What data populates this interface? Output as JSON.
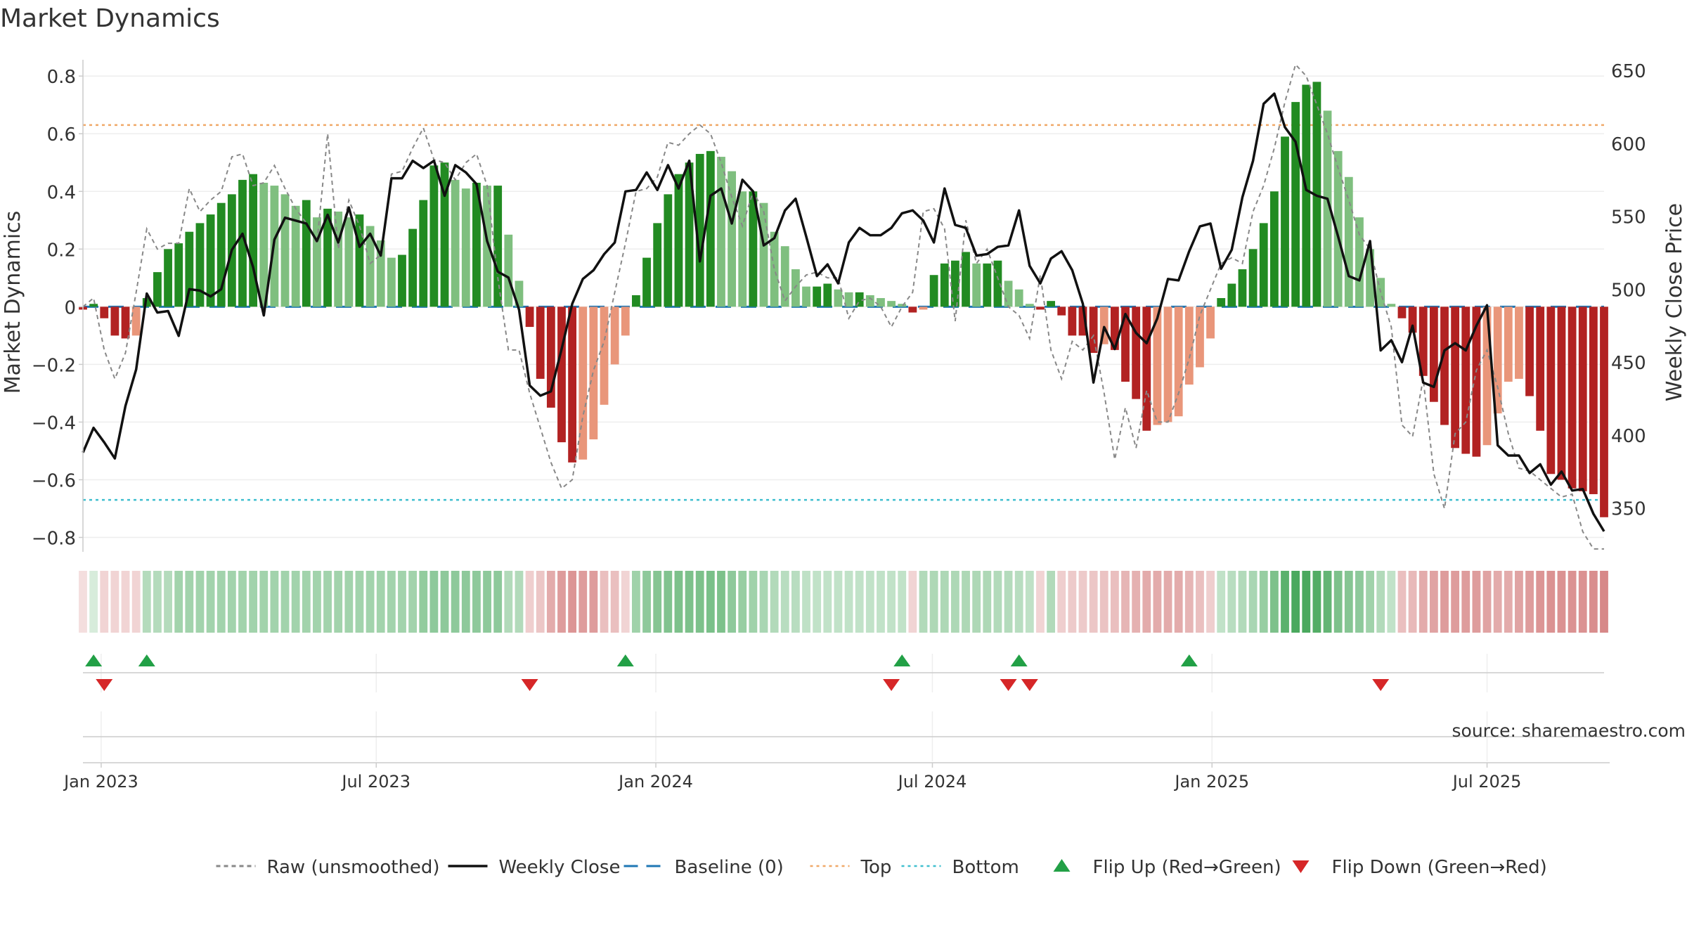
{
  "title": "Market Dynamics",
  "source": "source: sharemaestro.com",
  "chart_data": {
    "type": "bar",
    "title": "Market Dynamics",
    "ylabel": "Market Dynamics",
    "y2label": "Weekly Close Price",
    "ylim": [
      -0.85,
      0.82
    ],
    "y2lim": [
      320,
      650
    ],
    "yticks": [
      "0.8",
      "0.6",
      "0.4",
      "0.2",
      "0",
      "−0.2",
      "−0.4",
      "−0.6",
      "−0.8"
    ],
    "yticks_values": [
      0.8,
      0.6,
      0.4,
      0.2,
      0,
      -0.2,
      -0.4,
      -0.6,
      -0.8
    ],
    "y2ticks": [
      "650",
      "600",
      "550",
      "500",
      "450",
      "400",
      "350"
    ],
    "y2ticks_values": [
      650,
      600,
      550,
      500,
      450,
      400,
      350
    ],
    "xticks": [
      "Jan 2023",
      "Jul 2023",
      "Jan 2024",
      "Jul 2024",
      "Jan 2025",
      "Jul 2025"
    ],
    "xticks_dates": [
      "2023-01-01",
      "2023-07-01",
      "2024-01-01",
      "2024-07-01",
      "2025-01-01",
      "2025-07-01"
    ],
    "x_start": "2022-12-20",
    "week_count": 144,
    "top_line": 0.63,
    "bottom_line": -0.67,
    "baseline": 0,
    "grid": true,
    "legend_position": "bottom",
    "legend": [
      {
        "label": "Raw (unsmoothed)",
        "kind": "dashed-line",
        "color": "#888888"
      },
      {
        "label": "Weekly Close",
        "kind": "line",
        "color": "#111111"
      },
      {
        "label": "Baseline (0)",
        "kind": "dashed-line",
        "color": "#1f77b4"
      },
      {
        "label": "Top",
        "kind": "dotted-line",
        "color": "#f0a868"
      },
      {
        "label": "Bottom",
        "kind": "dotted-line",
        "color": "#3fbfcf"
      },
      {
        "label": "Flip Up (Red→Green)",
        "kind": "up-triangle",
        "color": "#22a046"
      },
      {
        "label": "Flip Down (Green→Red)",
        "kind": "down-triangle",
        "color": "#d62728"
      }
    ],
    "colors": {
      "strong_up": "#228b22",
      "weak_up": "#7fbf7f",
      "strong_down": "#b22222",
      "weak_down": "#e9967a",
      "raw": "#888888",
      "close": "#111111",
      "baseline": "#1f77b4",
      "top": "#f0a868",
      "bottom": "#3fbfcf",
      "flip_up": "#22a046",
      "flip_down": "#d62728"
    },
    "dynamics": [
      -0.01,
      0.01,
      -0.04,
      -0.1,
      -0.11,
      -0.1,
      0.03,
      0.12,
      0.2,
      0.22,
      0.26,
      0.29,
      0.32,
      0.36,
      0.39,
      0.44,
      0.46,
      0.43,
      0.42,
      0.39,
      0.35,
      0.37,
      0.31,
      0.34,
      0.33,
      0.31,
      0.32,
      0.28,
      0.23,
      0.17,
      0.18,
      0.27,
      0.37,
      0.49,
      0.5,
      0.44,
      0.41,
      0.43,
      0.42,
      0.42,
      0.25,
      0.09,
      -0.07,
      -0.25,
      -0.35,
      -0.47,
      -0.54,
      -0.53,
      -0.46,
      -0.34,
      -0.2,
      -0.1,
      0.04,
      0.17,
      0.29,
      0.39,
      0.46,
      0.5,
      0.53,
      0.54,
      0.52,
      0.47,
      0.4,
      0.4,
      0.36,
      0.26,
      0.21,
      0.13,
      0.07,
      0.07,
      0.08,
      0.06,
      0.05,
      0.05,
      0.04,
      0.03,
      0.02,
      0.01,
      -0.02,
      -0.01,
      0.11,
      0.15,
      0.16,
      0.19,
      0.15,
      0.15,
      0.16,
      0.09,
      0.06,
      0.01,
      -0.01,
      0.02,
      -0.03,
      -0.1,
      -0.1,
      -0.16,
      -0.13,
      -0.15,
      -0.26,
      -0.32,
      -0.43,
      -0.41,
      -0.4,
      -0.38,
      -0.27,
      -0.21,
      -0.11,
      0.03,
      0.08,
      0.13,
      0.2,
      0.29,
      0.4,
      0.59,
      0.71,
      0.77,
      0.78,
      0.68,
      0.54,
      0.45,
      0.31,
      0.2,
      0.1,
      0.01,
      -0.04,
      -0.09,
      -0.24,
      -0.33,
      -0.41,
      -0.49,
      -0.51,
      -0.52,
      -0.48,
      -0.37,
      -0.26,
      -0.25,
      -0.31,
      -0.43,
      -0.58,
      -0.6,
      -0.63,
      -0.64,
      -0.65,
      -0.73
    ],
    "raw": [
      0.0,
      0.03,
      -0.15,
      -0.25,
      -0.16,
      0.05,
      0.27,
      0.2,
      0.22,
      0.22,
      0.41,
      0.33,
      0.37,
      0.4,
      0.52,
      0.53,
      0.42,
      0.43,
      0.49,
      0.41,
      0.34,
      0.29,
      0.22,
      0.6,
      0.2,
      0.37,
      0.28,
      0.15,
      0.18,
      0.46,
      0.47,
      0.55,
      0.62,
      0.51,
      0.5,
      0.44,
      0.5,
      0.53,
      0.42,
      0.1,
      -0.15,
      -0.15,
      -0.3,
      -0.42,
      -0.54,
      -0.63,
      -0.6,
      -0.38,
      -0.22,
      -0.12,
      0.05,
      0.22,
      0.4,
      0.41,
      0.45,
      0.57,
      0.56,
      0.6,
      0.63,
      0.6,
      0.5,
      0.38,
      0.28,
      0.4,
      0.33,
      0.13,
      0.02,
      0.07,
      0.11,
      0.12,
      0.1,
      0.1,
      -0.04,
      0.02,
      0.03,
      0.0,
      -0.07,
      0.0,
      0.05,
      0.33,
      0.34,
      0.27,
      -0.05,
      0.3,
      0.15,
      0.2,
      0.1,
      0.0,
      -0.03,
      -0.11,
      0.11,
      -0.15,
      -0.25,
      -0.12,
      -0.15,
      -0.1,
      -0.3,
      -0.53,
      -0.35,
      -0.49,
      -0.29,
      -0.4,
      -0.4,
      -0.3,
      -0.18,
      -0.03,
      0.06,
      0.15,
      0.17,
      0.15,
      0.33,
      0.42,
      0.55,
      0.71,
      0.84,
      0.8,
      0.7,
      0.6,
      0.48,
      0.37,
      0.25,
      0.2,
      0.05,
      -0.07,
      -0.41,
      -0.45,
      -0.25,
      -0.58,
      -0.7,
      -0.44,
      -0.4,
      -0.22,
      -0.15,
      -0.28,
      -0.44,
      -0.56,
      -0.57,
      -0.6,
      -0.63,
      -0.66,
      -0.65,
      -0.78,
      -0.84,
      -0.84
    ],
    "close": [
      388,
      405,
      395,
      384,
      420,
      445,
      497,
      484,
      485,
      468,
      500,
      499,
      495,
      500,
      527,
      538,
      515,
      482,
      534,
      549,
      547,
      545,
      533,
      551,
      532,
      556,
      529,
      538,
      523,
      576,
      576,
      588,
      583,
      588,
      564,
      585,
      580,
      572,
      533,
      512,
      508,
      486,
      434,
      427,
      430,
      459,
      490,
      507,
      513,
      524,
      532,
      567,
      568,
      580,
      568,
      585,
      569,
      588,
      519,
      564,
      569,
      545,
      575,
      567,
      530,
      535,
      554,
      562,
      536,
      509,
      517,
      504,
      532,
      542,
      537,
      537,
      542,
      552,
      554,
      547,
      532,
      569,
      544,
      542,
      523,
      524,
      529,
      530,
      554,
      516,
      504,
      521,
      526,
      513,
      490,
      436,
      474,
      459,
      483,
      470,
      463,
      480,
      507,
      506,
      526,
      543,
      545,
      514,
      527,
      563,
      588,
      627,
      634,
      611,
      601,
      568,
      564,
      562,
      536,
      509,
      506,
      533,
      458,
      465,
      450,
      475,
      436,
      433,
      458,
      463,
      458,
      475,
      489,
      393,
      386,
      386,
      374,
      380,
      366,
      375,
      362,
      363,
      346,
      334
    ]
  },
  "swing_strip": [
    -0.08,
    0.08,
    -0.15,
    -0.15,
    -0.15,
    -0.15,
    0.28,
    0.28,
    0.28,
    0.38,
    0.38,
    0.38,
    0.38,
    0.38,
    0.38,
    0.38,
    0.38,
    0.38,
    0.38,
    0.38,
    0.38,
    0.38,
    0.38,
    0.38,
    0.38,
    0.38,
    0.38,
    0.38,
    0.38,
    0.38,
    0.38,
    0.38,
    0.48,
    0.5,
    0.5,
    0.5,
    0.5,
    0.5,
    0.5,
    0.5,
    0.3,
    0.3,
    -0.2,
    -0.25,
    -0.45,
    -0.55,
    -0.6,
    -0.55,
    -0.55,
    -0.3,
    -0.3,
    -0.15,
    0.4,
    0.5,
    0.55,
    0.58,
    0.6,
    0.6,
    0.6,
    0.62,
    0.6,
    0.5,
    0.45,
    0.4,
    0.35,
    0.3,
    0.25,
    0.25,
    0.22,
    0.2,
    0.2,
    0.2,
    0.2,
    0.2,
    0.2,
    0.2,
    0.2,
    0.2,
    -0.15,
    0.3,
    0.32,
    0.32,
    0.32,
    0.32,
    0.32,
    0.32,
    0.3,
    0.28,
    0.25,
    0.22,
    -0.15,
    0.3,
    -0.2,
    -0.22,
    -0.22,
    -0.25,
    -0.28,
    -0.3,
    -0.38,
    -0.4,
    -0.45,
    -0.45,
    -0.45,
    -0.45,
    -0.38,
    -0.3,
    -0.2,
    0.2,
    0.25,
    0.3,
    0.35,
    0.45,
    0.6,
    0.8,
    0.9,
    0.9,
    0.85,
    0.75,
    0.6,
    0.55,
    0.5,
    0.4,
    0.3,
    0.2,
    -0.3,
    -0.35,
    -0.45,
    -0.5,
    -0.55,
    -0.55,
    -0.55,
    -0.55,
    -0.5,
    -0.45,
    -0.45,
    -0.5,
    -0.55,
    -0.6,
    -0.62,
    -0.62,
    -0.62,
    -0.62,
    -0.65,
    -0.7
  ],
  "flip_up_weeks": [
    1,
    6,
    51,
    77,
    88,
    104
  ],
  "flip_down_weeks": [
    2,
    42,
    76,
    87,
    89,
    122
  ]
}
